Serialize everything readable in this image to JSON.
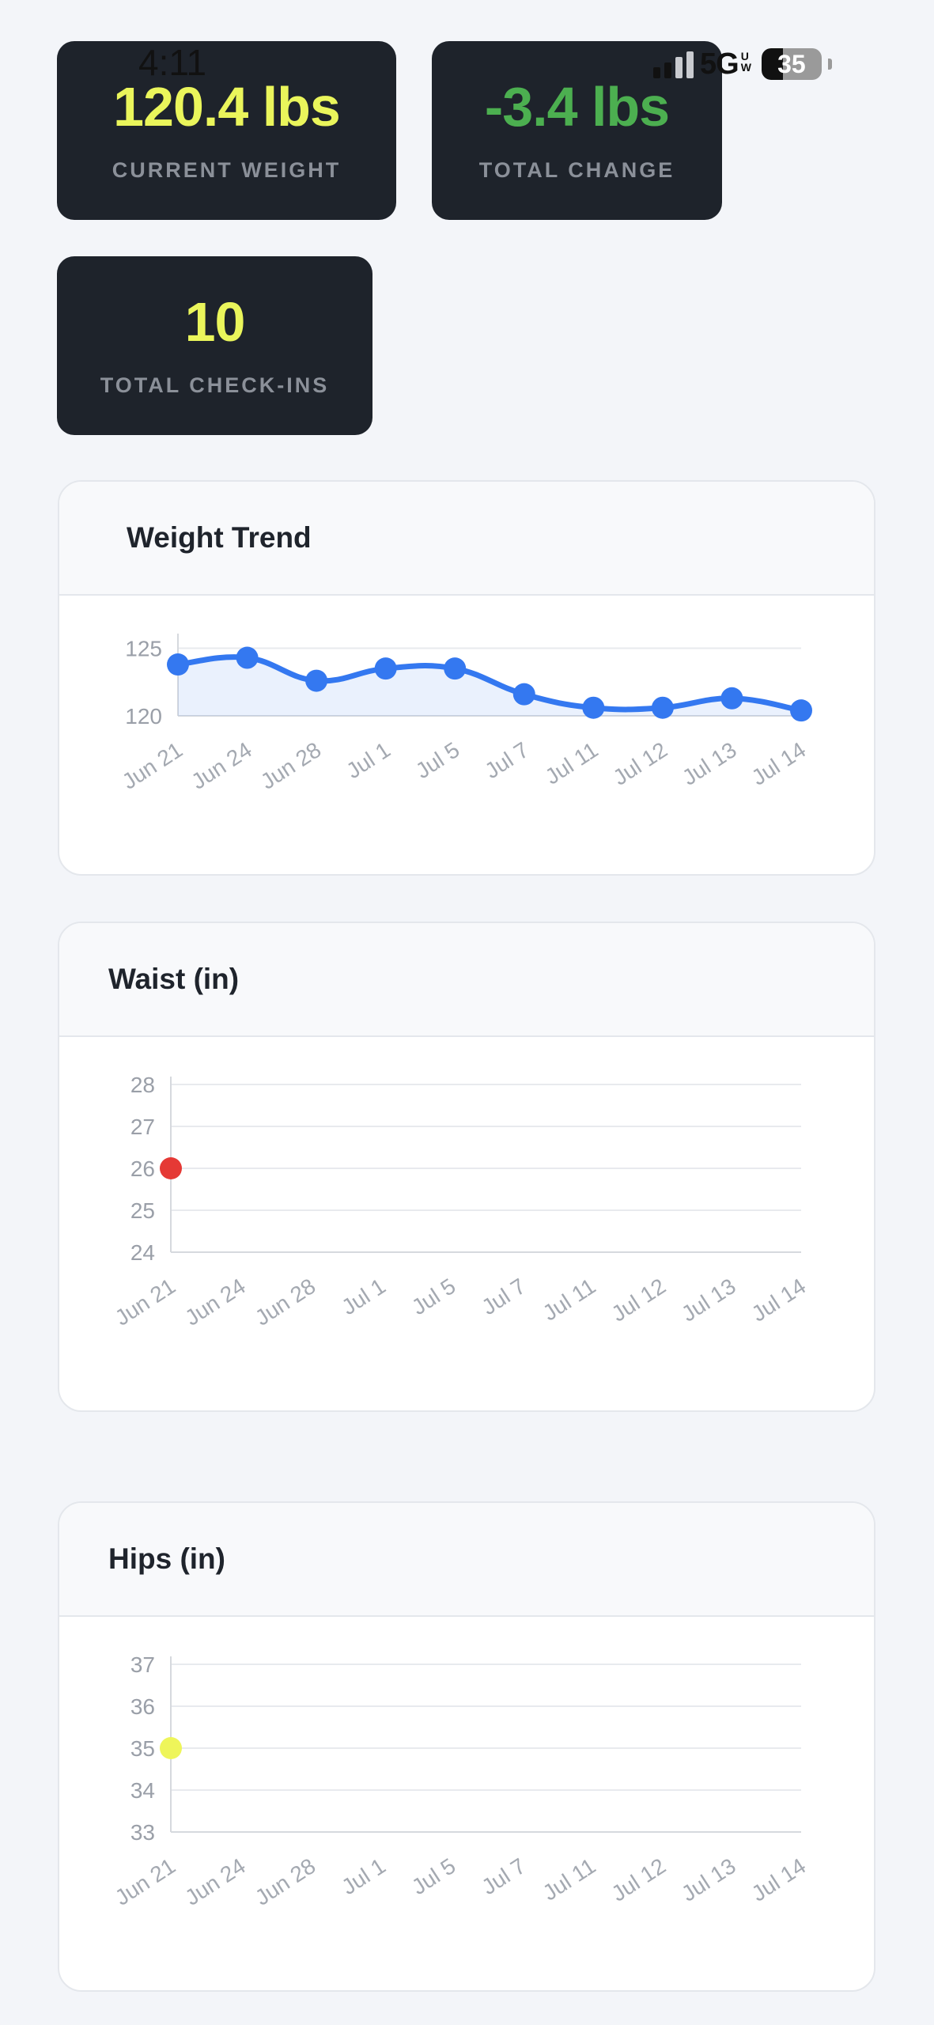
{
  "status_bar": {
    "time": "4:11",
    "network": "5G",
    "network_sub": [
      "U",
      "W"
    ],
    "battery": "35"
  },
  "stats": {
    "current_weight": {
      "value": "120.4 lbs",
      "label": "CURRENT WEIGHT",
      "color": "#eaf55b"
    },
    "total_change": {
      "value": "-3.4 lbs",
      "label": "TOTAL CHANGE",
      "color": "#4caf50"
    },
    "total_checkins": {
      "value": "10",
      "label": "TOTAL CHECK-INS",
      "color": "#eaf55b"
    }
  },
  "charts": {
    "trend": {
      "title": "Weight Trend"
    },
    "waist": {
      "title": "Waist (in)"
    },
    "hips": {
      "title": "Hips (in)"
    }
  },
  "chart_data": [
    {
      "type": "area",
      "title": "Weight Trend",
      "categories": [
        "Jun 21",
        "Jun 24",
        "Jun 28",
        "Jul 1",
        "Jul 5",
        "Jul 7",
        "Jul 11",
        "Jul 12",
        "Jul 13",
        "Jul 14"
      ],
      "values": [
        123.8,
        124.3,
        122.6,
        123.5,
        123.5,
        121.6,
        120.6,
        120.6,
        121.3,
        120.4
      ],
      "yticks": [
        120,
        125
      ],
      "ylim": [
        120,
        125.5
      ],
      "color": "#3478f0",
      "grid": true
    },
    {
      "type": "scatter",
      "title": "Waist (in)",
      "categories": [
        "Jun 21",
        "Jun 24",
        "Jun 28",
        "Jul 1",
        "Jul 5",
        "Jul 7",
        "Jul 11",
        "Jul 12",
        "Jul 13",
        "Jul 14"
      ],
      "values": [
        26,
        null,
        null,
        null,
        null,
        null,
        null,
        null,
        null,
        null
      ],
      "yticks": [
        24,
        25,
        26,
        27,
        28
      ],
      "ylim": [
        24,
        28
      ],
      "color": "#e53935",
      "grid": true
    },
    {
      "type": "scatter",
      "title": "Hips (in)",
      "categories": [
        "Jun 21",
        "Jun 24",
        "Jun 28",
        "Jul 1",
        "Jul 5",
        "Jul 7",
        "Jul 11",
        "Jul 12",
        "Jul 13",
        "Jul 14"
      ],
      "values": [
        35,
        null,
        null,
        null,
        null,
        null,
        null,
        null,
        null,
        null
      ],
      "yticks": [
        33,
        34,
        35,
        36,
        37
      ],
      "ylim": [
        33,
        37
      ],
      "color": "#eef55a",
      "grid": true
    }
  ]
}
